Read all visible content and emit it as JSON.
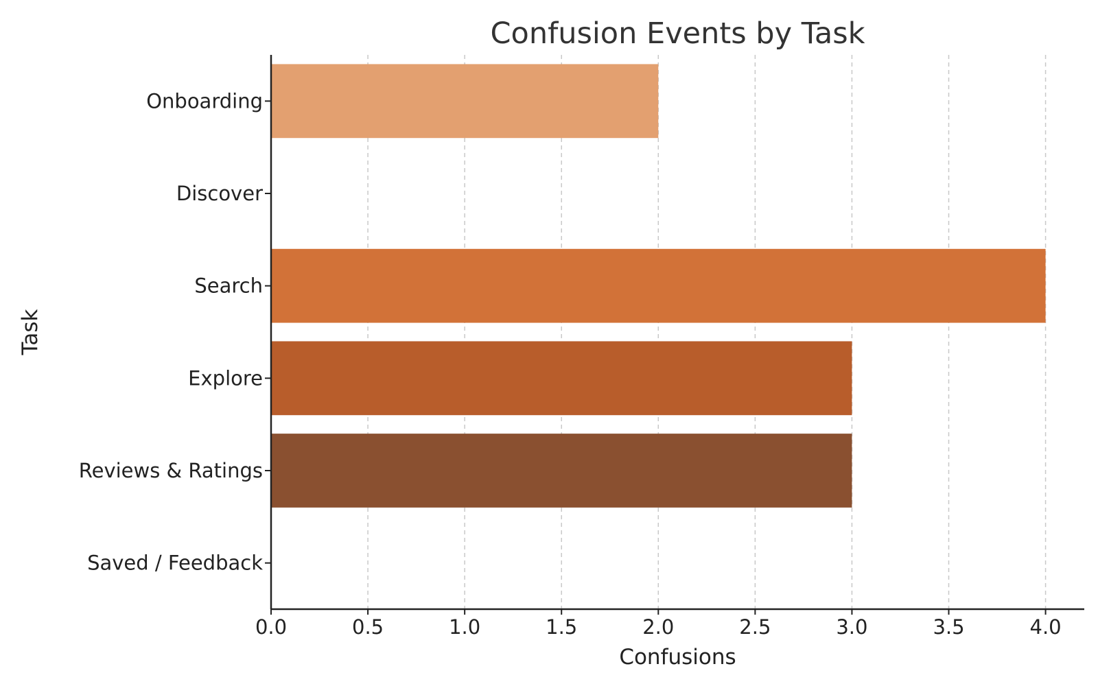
{
  "chart_data": {
    "type": "bar",
    "orientation": "horizontal",
    "title": "Confusion Events by Task",
    "xlabel": "Confusions",
    "ylabel": "Task",
    "categories": [
      "Onboarding",
      "Discover",
      "Search",
      "Explore",
      "Reviews & Ratings",
      "Saved / Feedback"
    ],
    "values": [
      2,
      0,
      4,
      3,
      3,
      0
    ],
    "colors": [
      "#e3a070",
      "#e3a070",
      "#d27238",
      "#b85d2b",
      "#8a5030",
      "#8a5030"
    ],
    "xlim": [
      0,
      4.2
    ],
    "xticks": [
      "0.0",
      "0.5",
      "1.0",
      "1.5",
      "2.0",
      "2.5",
      "3.0",
      "3.5",
      "4.0"
    ],
    "xtick_values": [
      0,
      0.5,
      1.0,
      1.5,
      2.0,
      2.5,
      3.0,
      3.5,
      4.0
    ],
    "grid": "x-dashed",
    "legend": "none"
  }
}
